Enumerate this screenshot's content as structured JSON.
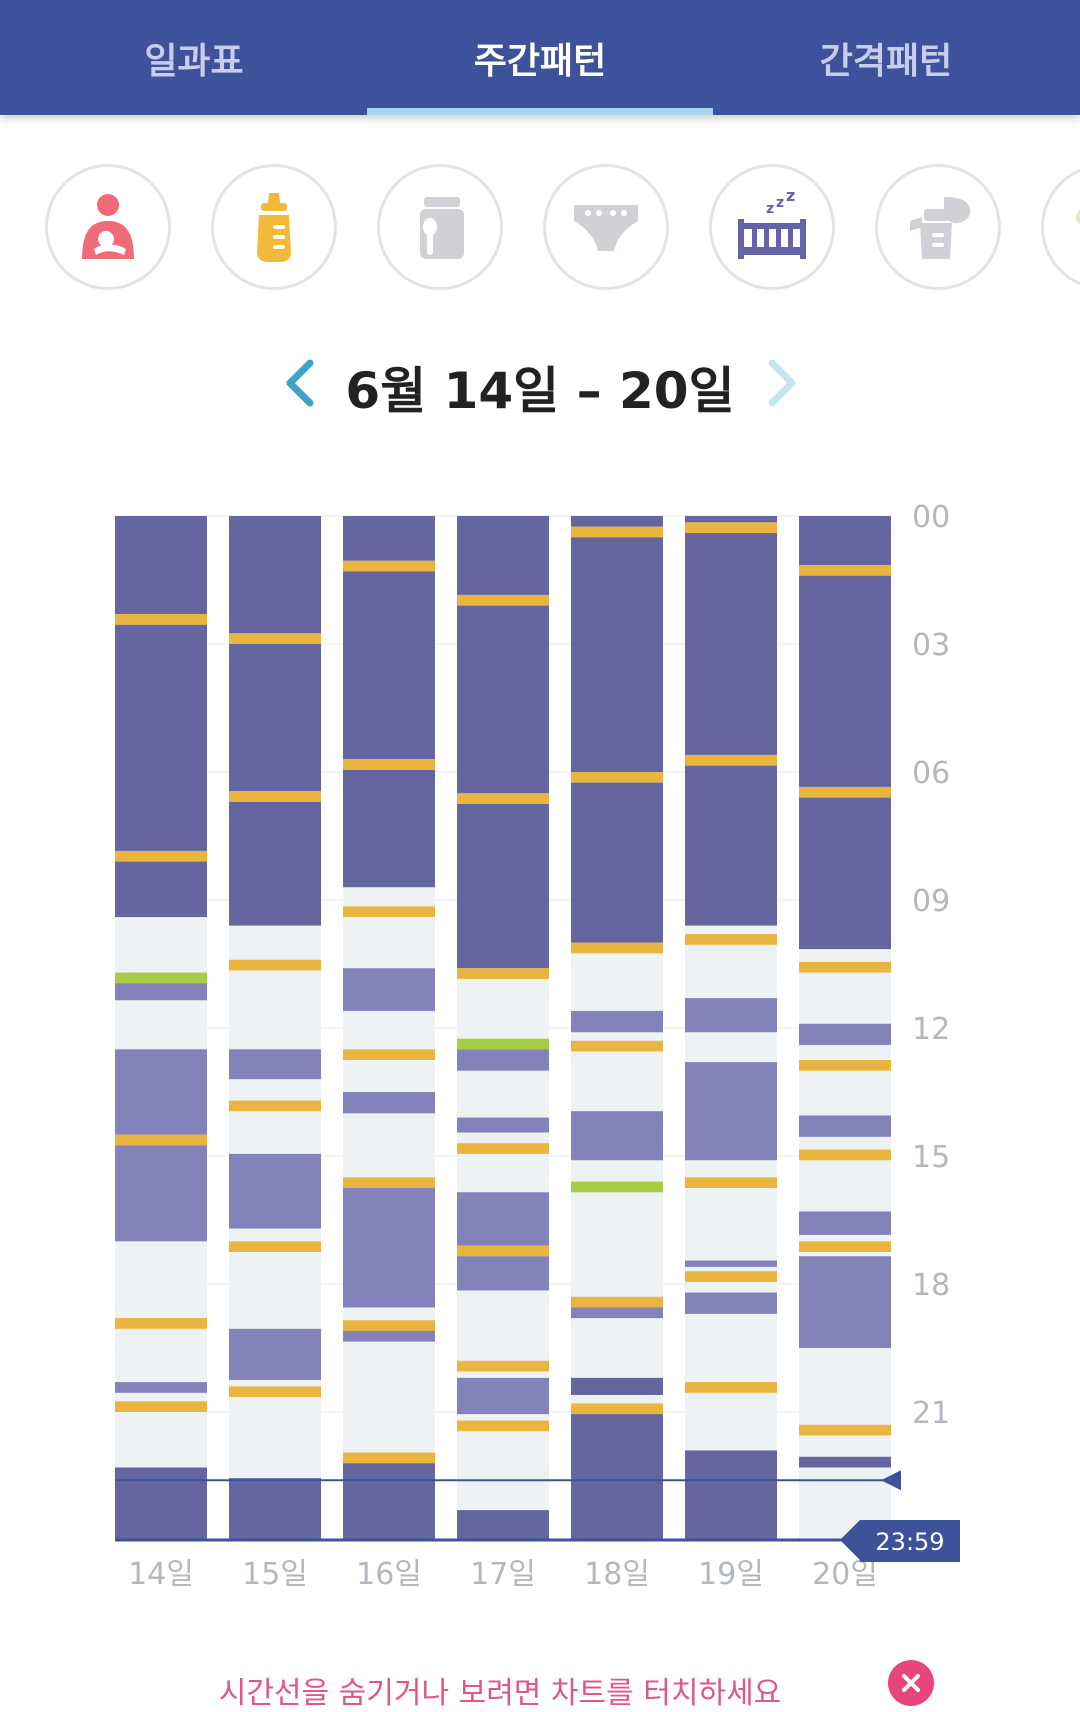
{
  "tabs": [
    {
      "label": "일과표",
      "active": false
    },
    {
      "label": "주간패턴",
      "active": true
    },
    {
      "label": "간격패턴",
      "active": false
    }
  ],
  "categories": [
    {
      "icon": "breastfeeding-icon",
      "color": "#ef6b78"
    },
    {
      "icon": "baby-bottle-icon",
      "color": "#f2b93b"
    },
    {
      "icon": "baby-food-icon",
      "color": "#cfd1d6"
    },
    {
      "icon": "diaper-icon",
      "color": "#cfd1d6"
    },
    {
      "icon": "crib-sleep-icon",
      "color": "#6264a7"
    },
    {
      "icon": "breast-pump-icon",
      "color": "#cfd1d6"
    },
    {
      "icon": "more-category-icon",
      "color": "#e0e9c8"
    }
  ],
  "date_nav": {
    "title": "6월 14일 – 20일",
    "prev_icon": "chevron-left-icon",
    "next_icon": "chevron-right-icon"
  },
  "chart_data": {
    "type": "timeline",
    "x": [
      "14일",
      "15일",
      "16일",
      "17일",
      "18일",
      "19일",
      "20일"
    ],
    "y_ticks": [
      "00",
      "03",
      "06",
      "09",
      "12",
      "15",
      "18",
      "21"
    ],
    "ylim": [
      0,
      24
    ],
    "current_time_label": "23:59",
    "colors": {
      "night_sleep": "#65659f",
      "nap": "#8382ba",
      "feeding": "#e9b53f",
      "other": "#a8cc47",
      "empty": "#eff2f5"
    },
    "days": [
      {
        "day": "14일",
        "segments": [
          {
            "type": "night_sleep",
            "start": 0,
            "end": 2.3
          },
          {
            "type": "feeding",
            "start": 2.3,
            "end": 2.55
          },
          {
            "type": "night_sleep",
            "start": 2.55,
            "end": 7.85
          },
          {
            "type": "feeding",
            "start": 7.85,
            "end": 8.1
          },
          {
            "type": "night_sleep",
            "start": 8.1,
            "end": 9.4
          },
          {
            "type": "other",
            "start": 10.7,
            "end": 10.95
          },
          {
            "type": "nap",
            "start": 10.95,
            "end": 11.35
          },
          {
            "type": "nap",
            "start": 12.5,
            "end": 14.5
          },
          {
            "type": "feeding",
            "start": 14.5,
            "end": 14.75
          },
          {
            "type": "nap",
            "start": 14.75,
            "end": 17.0
          },
          {
            "type": "feeding",
            "start": 18.8,
            "end": 19.05
          },
          {
            "type": "nap",
            "start": 20.3,
            "end": 20.55
          },
          {
            "type": "feeding",
            "start": 20.75,
            "end": 21.0
          },
          {
            "type": "night_sleep",
            "start": 22.3,
            "end": 24
          }
        ]
      },
      {
        "day": "15일",
        "segments": [
          {
            "type": "night_sleep",
            "start": 0,
            "end": 2.75
          },
          {
            "type": "feeding",
            "start": 2.75,
            "end": 3.0
          },
          {
            "type": "night_sleep",
            "start": 3.0,
            "end": 6.45
          },
          {
            "type": "feeding",
            "start": 6.45,
            "end": 6.7
          },
          {
            "type": "night_sleep",
            "start": 6.7,
            "end": 9.6
          },
          {
            "type": "feeding",
            "start": 10.4,
            "end": 10.65
          },
          {
            "type": "nap",
            "start": 12.5,
            "end": 13.2
          },
          {
            "type": "feeding",
            "start": 13.7,
            "end": 13.95
          },
          {
            "type": "nap",
            "start": 14.95,
            "end": 16.7
          },
          {
            "type": "feeding",
            "start": 17.0,
            "end": 17.25
          },
          {
            "type": "nap",
            "start": 19.05,
            "end": 20.25
          },
          {
            "type": "feeding",
            "start": 20.4,
            "end": 20.65
          },
          {
            "type": "night_sleep",
            "start": 22.55,
            "end": 24
          }
        ]
      },
      {
        "day": "16일",
        "segments": [
          {
            "type": "night_sleep",
            "start": 0,
            "end": 1.05
          },
          {
            "type": "feeding",
            "start": 1.05,
            "end": 1.3
          },
          {
            "type": "night_sleep",
            "start": 1.3,
            "end": 5.7
          },
          {
            "type": "feeding",
            "start": 5.7,
            "end": 5.95
          },
          {
            "type": "night_sleep",
            "start": 5.95,
            "end": 8.7
          },
          {
            "type": "feeding",
            "start": 9.15,
            "end": 9.4
          },
          {
            "type": "nap",
            "start": 10.6,
            "end": 11.6
          },
          {
            "type": "feeding",
            "start": 12.5,
            "end": 12.75
          },
          {
            "type": "nap",
            "start": 13.5,
            "end": 14.0
          },
          {
            "type": "feeding",
            "start": 15.5,
            "end": 15.75
          },
          {
            "type": "nap",
            "start": 15.75,
            "end": 18.55
          },
          {
            "type": "feeding",
            "start": 18.85,
            "end": 19.1
          },
          {
            "type": "nap",
            "start": 19.1,
            "end": 19.35
          },
          {
            "type": "feeding",
            "start": 21.95,
            "end": 22.2
          },
          {
            "type": "night_sleep",
            "start": 22.2,
            "end": 24
          }
        ]
      },
      {
        "day": "17일",
        "segments": [
          {
            "type": "night_sleep",
            "start": 0,
            "end": 1.85
          },
          {
            "type": "feeding",
            "start": 1.85,
            "end": 2.1
          },
          {
            "type": "night_sleep",
            "start": 2.1,
            "end": 6.5
          },
          {
            "type": "feeding",
            "start": 6.5,
            "end": 6.75
          },
          {
            "type": "night_sleep",
            "start": 6.75,
            "end": 10.6
          },
          {
            "type": "feeding",
            "start": 10.6,
            "end": 10.85
          },
          {
            "type": "other",
            "start": 12.25,
            "end": 12.5
          },
          {
            "type": "nap",
            "start": 12.5,
            "end": 13.0
          },
          {
            "type": "nap",
            "start": 14.1,
            "end": 14.45
          },
          {
            "type": "feeding",
            "start": 14.7,
            "end": 14.95
          },
          {
            "type": "nap",
            "start": 15.85,
            "end": 17.1
          },
          {
            "type": "feeding",
            "start": 17.1,
            "end": 17.35
          },
          {
            "type": "nap",
            "start": 17.35,
            "end": 18.15
          },
          {
            "type": "feeding",
            "start": 19.8,
            "end": 20.05
          },
          {
            "type": "nap",
            "start": 20.2,
            "end": 21.05
          },
          {
            "type": "feeding",
            "start": 21.2,
            "end": 21.45
          },
          {
            "type": "night_sleep",
            "start": 23.3,
            "end": 24
          }
        ]
      },
      {
        "day": "18일",
        "segments": [
          {
            "type": "night_sleep",
            "start": 0,
            "end": 0.25
          },
          {
            "type": "feeding",
            "start": 0.25,
            "end": 0.5
          },
          {
            "type": "night_sleep",
            "start": 0.5,
            "end": 6.0
          },
          {
            "type": "feeding",
            "start": 6.0,
            "end": 6.25
          },
          {
            "type": "night_sleep",
            "start": 6.25,
            "end": 10.0
          },
          {
            "type": "feeding",
            "start": 10.0,
            "end": 10.25
          },
          {
            "type": "nap",
            "start": 11.6,
            "end": 12.1
          },
          {
            "type": "feeding",
            "start": 12.3,
            "end": 12.55
          },
          {
            "type": "nap",
            "start": 13.95,
            "end": 15.1
          },
          {
            "type": "other",
            "start": 15.6,
            "end": 15.85
          },
          {
            "type": "feeding",
            "start": 18.3,
            "end": 18.55
          },
          {
            "type": "nap",
            "start": 18.55,
            "end": 18.8
          },
          {
            "type": "night_sleep",
            "start": 20.2,
            "end": 20.6
          },
          {
            "type": "feeding",
            "start": 20.8,
            "end": 21.05
          },
          {
            "type": "night_sleep",
            "start": 21.05,
            "end": 24
          }
        ]
      },
      {
        "day": "19일",
        "segments": [
          {
            "type": "night_sleep",
            "start": 0,
            "end": 0.15
          },
          {
            "type": "feeding",
            "start": 0.15,
            "end": 0.4
          },
          {
            "type": "night_sleep",
            "start": 0.4,
            "end": 5.6
          },
          {
            "type": "feeding",
            "start": 5.6,
            "end": 5.85
          },
          {
            "type": "night_sleep",
            "start": 5.85,
            "end": 9.6
          },
          {
            "type": "feeding",
            "start": 9.8,
            "end": 10.05
          },
          {
            "type": "nap",
            "start": 11.3,
            "end": 12.1
          },
          {
            "type": "nap",
            "start": 12.8,
            "end": 15.1
          },
          {
            "type": "feeding",
            "start": 15.5,
            "end": 15.75
          },
          {
            "type": "nap",
            "start": 17.45,
            "end": 17.6
          },
          {
            "type": "feeding",
            "start": 17.7,
            "end": 17.95
          },
          {
            "type": "nap",
            "start": 18.2,
            "end": 18.7
          },
          {
            "type": "feeding",
            "start": 20.3,
            "end": 20.55
          },
          {
            "type": "night_sleep",
            "start": 21.9,
            "end": 24
          }
        ]
      },
      {
        "day": "20일",
        "segments": [
          {
            "type": "night_sleep",
            "start": 0,
            "end": 1.15
          },
          {
            "type": "feeding",
            "start": 1.15,
            "end": 1.4
          },
          {
            "type": "night_sleep",
            "start": 1.4,
            "end": 6.35
          },
          {
            "type": "feeding",
            "start": 6.35,
            "end": 6.6
          },
          {
            "type": "night_sleep",
            "start": 6.6,
            "end": 10.15
          },
          {
            "type": "feeding",
            "start": 10.45,
            "end": 10.7
          },
          {
            "type": "nap",
            "start": 11.9,
            "end": 12.4
          },
          {
            "type": "feeding",
            "start": 12.75,
            "end": 13.0
          },
          {
            "type": "nap",
            "start": 14.05,
            "end": 14.55
          },
          {
            "type": "feeding",
            "start": 14.85,
            "end": 15.1
          },
          {
            "type": "nap",
            "start": 16.3,
            "end": 16.85
          },
          {
            "type": "feeding",
            "start": 17.0,
            "end": 17.25
          },
          {
            "type": "nap",
            "start": 17.35,
            "end": 19.5
          },
          {
            "type": "feeding",
            "start": 21.3,
            "end": 21.55
          },
          {
            "type": "night_sleep",
            "start": 22.05,
            "end": 22.3
          }
        ]
      }
    ]
  },
  "hint": {
    "text": "시간선을 숨기거나 보려면 차트를 터치하세요",
    "close_icon": "close-icon"
  }
}
